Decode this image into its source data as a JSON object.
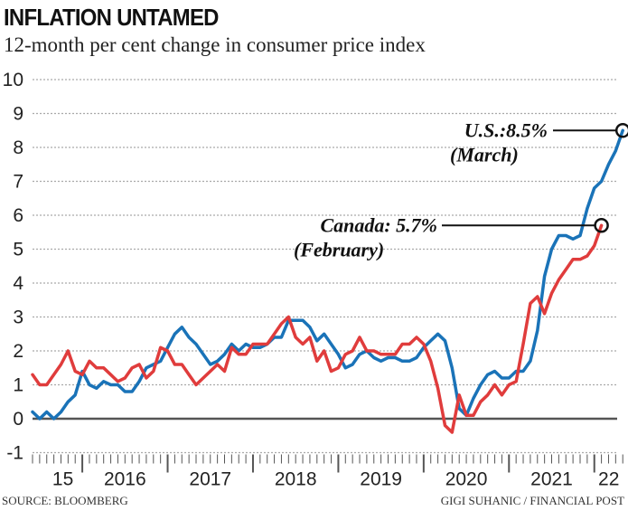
{
  "header": {
    "title": "INFLATION UNTAMED",
    "subtitle": "12-month per cent change in consumer price index"
  },
  "footer": {
    "source": "SOURCE: BLOOMBERG",
    "credit": "GIGI SUHANIC / FINANCIAL POST"
  },
  "colors": {
    "us": "#1a73b8",
    "canada": "#e03c3c",
    "zero_line": "#555555",
    "grid": "#aaaaaa"
  },
  "chart_data": {
    "type": "line",
    "title": "INFLATION UNTAMED",
    "subtitle": "12-month per cent change in consumer price index",
    "xlabel": "",
    "ylabel": "",
    "ylim": [
      -1,
      10
    ],
    "yticks": [
      "-1",
      "0",
      "1",
      "2",
      "3",
      "4",
      "5",
      "6",
      "7",
      "8",
      "9",
      "10"
    ],
    "xtick_labels": [
      "15",
      "2016",
      "2017",
      "2018",
      "2019",
      "2020",
      "2021",
      "22"
    ],
    "x_start": "2015-06",
    "x_unit": "month",
    "grid": "horizontal dotted",
    "series": [
      {
        "name": "U.S.",
        "start": "2015-06",
        "values": [
          0.2,
          0.0,
          0.2,
          0.0,
          0.2,
          0.5,
          0.7,
          1.4,
          1.0,
          0.9,
          1.1,
          1.0,
          1.0,
          0.8,
          0.8,
          1.1,
          1.5,
          1.6,
          1.7,
          2.1,
          2.5,
          2.7,
          2.4,
          2.2,
          1.9,
          1.6,
          1.7,
          1.9,
          2.2,
          2.0,
          2.2,
          2.1,
          2.1,
          2.2,
          2.4,
          2.4,
          2.9,
          2.9,
          2.9,
          2.7,
          2.3,
          2.5,
          2.2,
          1.9,
          1.5,
          1.6,
          1.9,
          2.0,
          1.8,
          1.7,
          1.8,
          1.8,
          1.7,
          1.7,
          1.8,
          2.1,
          2.3,
          2.5,
          2.3,
          1.5,
          0.3,
          0.1,
          0.6,
          1.0,
          1.3,
          1.4,
          1.2,
          1.2,
          1.4,
          1.4,
          1.7,
          2.6,
          4.2,
          5.0,
          5.4,
          5.4,
          5.3,
          5.4,
          6.2,
          6.8,
          7.0,
          7.5,
          7.9,
          8.5
        ],
        "end_label": "U.S.:8.5%",
        "end_note": "(March)"
      },
      {
        "name": "Canada",
        "start": "2015-06",
        "values": [
          1.3,
          1.0,
          1.0,
          1.3,
          1.6,
          2.0,
          1.4,
          1.3,
          1.7,
          1.5,
          1.5,
          1.3,
          1.1,
          1.2,
          1.5,
          1.6,
          1.2,
          1.4,
          2.1,
          2.0,
          1.6,
          1.6,
          1.3,
          1.0,
          1.2,
          1.4,
          1.6,
          1.4,
          2.1,
          1.9,
          1.9,
          2.2,
          2.2,
          2.2,
          2.5,
          2.8,
          3.0,
          2.4,
          2.2,
          2.4,
          1.7,
          2.0,
          1.4,
          1.5,
          1.9,
          2.0,
          2.4,
          2.0,
          2.0,
          1.9,
          1.9,
          1.9,
          2.2,
          2.2,
          2.4,
          2.2,
          1.7,
          0.9,
          -0.2,
          -0.4,
          0.7,
          0.1,
          0.1,
          0.5,
          0.7,
          1.0,
          0.7,
          1.0,
          1.1,
          2.2,
          3.4,
          3.6,
          3.1,
          3.7,
          4.1,
          4.4,
          4.7,
          4.7,
          4.8,
          5.1,
          5.7
        ],
        "end_label": "Canada: 5.7%",
        "end_note": "(February)"
      }
    ]
  }
}
